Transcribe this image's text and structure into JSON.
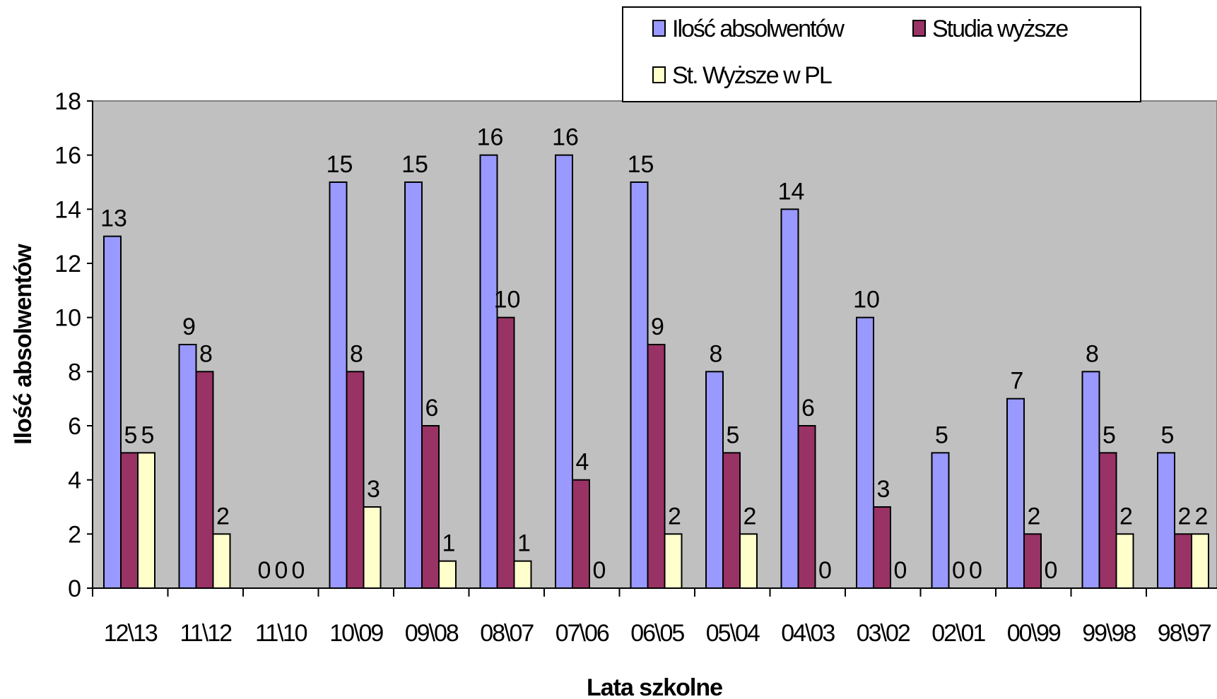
{
  "chart_data": {
    "type": "bar",
    "title": "",
    "xlabel": "Lata szkolne",
    "ylabel": "Ilość absolwentów",
    "ylim": [
      0,
      18
    ],
    "yticks": [
      0,
      2,
      4,
      6,
      8,
      10,
      12,
      14,
      16,
      18
    ],
    "grid": false,
    "plot_background": "#c0c0c0",
    "legend_position": "top-right",
    "categories": [
      "12\\13",
      "11\\12",
      "11\\10",
      "10\\09",
      "09\\08",
      "08\\07",
      "07\\06",
      "06\\05",
      "05\\04",
      "04\\03",
      "03\\02",
      "02\\01",
      "00\\99",
      "99\\98",
      "98\\97"
    ],
    "series": [
      {
        "name": "Ilość absolwentów",
        "color": "#9999ff",
        "values": [
          13,
          9,
          0,
          15,
          15,
          16,
          16,
          15,
          8,
          14,
          10,
          5,
          7,
          8,
          5
        ]
      },
      {
        "name": "Studia wyższe",
        "color": "#993366",
        "values": [
          5,
          8,
          0,
          8,
          6,
          10,
          4,
          9,
          5,
          6,
          3,
          0,
          2,
          5,
          2
        ]
      },
      {
        "name": "St. Wyższe w PL",
        "color": "#ffffcc",
        "values": [
          5,
          2,
          0,
          3,
          1,
          1,
          0,
          2,
          2,
          0,
          0,
          0,
          0,
          2,
          2
        ]
      }
    ]
  }
}
